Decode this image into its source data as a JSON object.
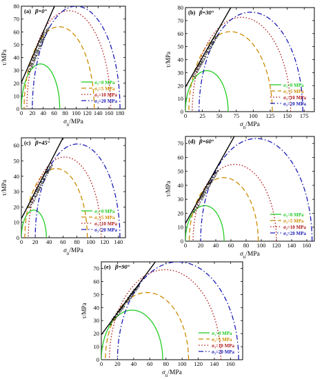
{
  "figure": {
    "colors": {
      "s0": "#22cc22",
      "s5": "#cc8a00",
      "s10": "#b01818",
      "s20": "#1a1ab4",
      "envelope": "#000000",
      "axis": "#000000"
    },
    "series_styles": {
      "s0": "solid",
      "s5": "dash",
      "s10": "dot",
      "s20": "dashdot"
    }
  },
  "chart_data": [
    {
      "type": "line",
      "panel_label": "(a)",
      "beta_label": "β=0°",
      "envelope_label": "τ=20.60438+0.98475σₙ",
      "xlabel_main": "σ",
      "xlabel_sub": "n",
      "xlabel_unit": "/MPa",
      "ylabel": "τ/MPa",
      "xlim": [
        0,
        190
      ],
      "ylim": [
        0,
        80
      ],
      "xticks": [
        0,
        20,
        40,
        60,
        80,
        100,
        120,
        140,
        160,
        180
      ],
      "yticks": [
        0,
        10,
        20,
        30,
        40,
        50,
        60,
        70,
        80
      ],
      "envelope": {
        "intercept": 20.60438,
        "slope": 0.98475
      },
      "series": [
        {
          "key": "s0",
          "name": "σ₃=0 MPa",
          "sigma3": 0,
          "sigma1": 70
        },
        {
          "key": "s5",
          "name": "σ₃=5 MPa",
          "sigma3": 5,
          "sigma1": 133
        },
        {
          "key": "s10",
          "name": "σ₃=10 MPa",
          "sigma3": 10,
          "sigma1": 163
        },
        {
          "key": "s20",
          "name": "σ₃=20 MPa",
          "sigma3": 20,
          "sigma1": 180
        }
      ]
    },
    {
      "type": "line",
      "panel_label": "(b)",
      "beta_label": "β=30°",
      "envelope_label": "τ=18.86653+0.91467σₙ",
      "xlabel_main": "σ",
      "xlabel_sub": "n",
      "xlabel_unit": "/MPa",
      "ylabel": "τ/MPa",
      "xlim": [
        0,
        190
      ],
      "ylim": [
        0,
        80
      ],
      "xticks": [
        0,
        25,
        50,
        75,
        100,
        125,
        150,
        175
      ],
      "yticks": [
        0,
        10,
        20,
        30,
        40,
        50,
        60,
        70,
        80
      ],
      "envelope": {
        "intercept": 18.86653,
        "slope": 0.91467
      },
      "series": [
        {
          "key": "s0",
          "name": "σ₃=0 MPa",
          "sigma3": 0,
          "sigma1": 63
        },
        {
          "key": "s5",
          "name": "σ₃=5 MPa",
          "sigma3": 5,
          "sigma1": 128
        },
        {
          "key": "s10",
          "name": "σ₃=10 MPa",
          "sigma3": 10,
          "sigma1": 155
        },
        {
          "key": "s20",
          "name": "σ₃=20 MPa",
          "sigma3": 20,
          "sigma1": 173
        }
      ]
    },
    {
      "type": "line",
      "panel_label": "(c)",
      "beta_label": "β=45°",
      "envelope_label": "τ=12.42404+0.87706σₙ",
      "xlabel_main": "σ",
      "xlabel_sub": "n",
      "xlabel_unit": "/MPa",
      "ylabel": "τ/MPa",
      "xlim": [
        0,
        150
      ],
      "ylim": [
        0,
        65
      ],
      "xticks": [
        0,
        20,
        40,
        60,
        80,
        100,
        120,
        140
      ],
      "yticks": [
        0,
        10,
        20,
        30,
        40,
        50,
        60
      ],
      "envelope": {
        "intercept": 12.42404,
        "slope": 0.87706
      },
      "series": [
        {
          "key": "s0",
          "name": "σ₃=0 MPa",
          "sigma3": 0,
          "sigma1": 36
        },
        {
          "key": "s5",
          "name": "σ₃=5 MPa",
          "sigma3": 5,
          "sigma1": 95
        },
        {
          "key": "s10",
          "name": "σ₃=10 MPa",
          "sigma3": 10,
          "sigma1": 115
        },
        {
          "key": "s20",
          "name": "σ₃=20 MPa",
          "sigma3": 20,
          "sigma1": 142
        }
      ]
    },
    {
      "type": "line",
      "panel_label": "(d)",
      "beta_label": "β=60°",
      "envelope_label": "τ=12.73909+0.96652σₙ",
      "xlabel_main": "σ",
      "xlabel_sub": "n",
      "xlabel_unit": "/MPa",
      "ylabel": "τ/MPa",
      "xlim": [
        0,
        170
      ],
      "ylim": [
        0,
        75
      ],
      "xticks": [
        0,
        20,
        40,
        60,
        80,
        100,
        120,
        140,
        160
      ],
      "yticks": [
        0,
        10,
        20,
        30,
        40,
        50,
        60,
        70
      ],
      "envelope": {
        "intercept": 12.73909,
        "slope": 0.96652
      },
      "series": [
        {
          "key": "s0",
          "name": "σ₃=0 MPa",
          "sigma3": 0,
          "sigma1": 51
        },
        {
          "key": "s5",
          "name": "σ₃=5 MPa",
          "sigma3": 5,
          "sigma1": 96
        },
        {
          "key": "s10",
          "name": "σ₃=10 MPa",
          "sigma3": 10,
          "sigma1": 120
        },
        {
          "key": "s20",
          "name": "σ₃=20 MPa",
          "sigma3": 20,
          "sigma1": 167
        }
      ]
    },
    {
      "type": "line",
      "panel_label": "(e)",
      "beta_label": "β=90°",
      "envelope_label": "τ=19.15066+0.83509σₙ",
      "xlabel_main": "σ",
      "xlabel_sub": "n",
      "xlabel_unit": "/MPa",
      "ylabel": "τ/MPa",
      "xlim": [
        0,
        175
      ],
      "ylim": [
        0,
        75
      ],
      "xticks": [
        0,
        20,
        40,
        60,
        80,
        100,
        120,
        140,
        160
      ],
      "yticks": [
        0,
        10,
        20,
        30,
        40,
        50,
        60,
        70
      ],
      "envelope": {
        "intercept": 19.15066,
        "slope": 0.83509
      },
      "series": [
        {
          "key": "s0",
          "name": "σ₃=0 MPa",
          "sigma3": 0,
          "sigma1": 76
        },
        {
          "key": "s5",
          "name": "σ₃=5 MPa",
          "sigma3": 5,
          "sigma1": 108
        },
        {
          "key": "s10",
          "name": "σ₃=10 MPa",
          "sigma3": 10,
          "sigma1": 148
        },
        {
          "key": "s20",
          "name": "σ₃=20 MPa",
          "sigma3": 20,
          "sigma1": 170
        }
      ]
    }
  ]
}
